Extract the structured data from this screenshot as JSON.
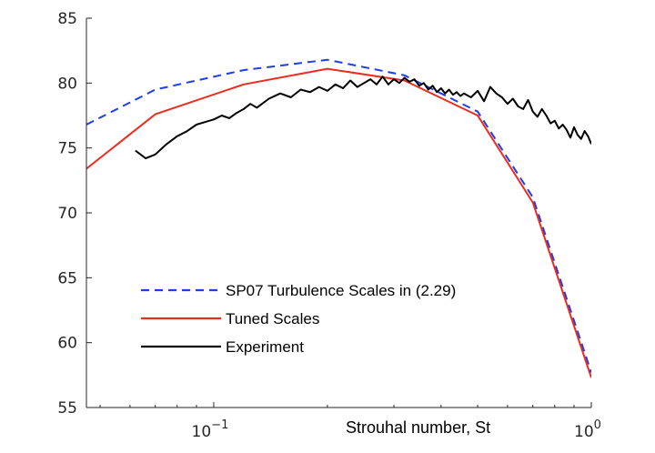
{
  "chart_data": {
    "type": "line",
    "title": "",
    "xlabel": "Strouhal number,  St",
    "ylabel": "",
    "xscale": "log",
    "xlim": [
      0.046,
      1.0
    ],
    "ylim": [
      55,
      85
    ],
    "y_ticks": [
      55,
      60,
      65,
      70,
      75,
      80,
      85
    ],
    "x_ticks": [
      {
        "value": 0.1,
        "base": "10",
        "exp": "−1"
      },
      {
        "value": 1.0,
        "base": "10",
        "exp": "0"
      }
    ],
    "grid": false,
    "legend_position": "bottom-left",
    "series": [
      {
        "name": "SP07 Turbulence Scales in (2.29)",
        "color": "#1f3de8",
        "dash": "dashed",
        "x": [
          0.046,
          0.07,
          0.12,
          0.2,
          0.32,
          0.5,
          0.7,
          1.0
        ],
        "y": [
          76.8,
          79.5,
          81.0,
          81.8,
          80.6,
          77.8,
          71.2,
          57.7
        ]
      },
      {
        "name": "Tuned Scales",
        "color": "#ee2a1e",
        "dash": "solid",
        "x": [
          0.046,
          0.07,
          0.12,
          0.2,
          0.32,
          0.5,
          0.7,
          1.0
        ],
        "y": [
          73.4,
          77.6,
          79.9,
          81.1,
          80.2,
          77.5,
          70.8,
          57.3
        ]
      },
      {
        "name": "Experiment",
        "color": "#000000",
        "dash": "solid",
        "x": [
          0.062,
          0.066,
          0.07,
          0.075,
          0.08,
          0.085,
          0.09,
          0.095,
          0.1,
          0.105,
          0.11,
          0.115,
          0.12,
          0.125,
          0.13,
          0.14,
          0.15,
          0.16,
          0.17,
          0.18,
          0.19,
          0.2,
          0.21,
          0.22,
          0.23,
          0.24,
          0.25,
          0.26,
          0.27,
          0.28,
          0.29,
          0.3,
          0.31,
          0.32,
          0.33,
          0.34,
          0.35,
          0.36,
          0.37,
          0.38,
          0.39,
          0.4,
          0.41,
          0.42,
          0.43,
          0.44,
          0.45,
          0.46,
          0.48,
          0.5,
          0.52,
          0.54,
          0.56,
          0.58,
          0.6,
          0.62,
          0.64,
          0.66,
          0.68,
          0.7,
          0.72,
          0.74,
          0.76,
          0.78,
          0.8,
          0.82,
          0.84,
          0.86,
          0.88,
          0.9,
          0.92,
          0.94,
          0.96,
          0.98,
          1.0
        ],
        "y": [
          74.8,
          74.2,
          74.5,
          75.3,
          75.9,
          76.3,
          76.8,
          77.0,
          77.2,
          77.5,
          77.3,
          77.7,
          78.0,
          78.4,
          78.1,
          78.8,
          79.2,
          78.9,
          79.5,
          79.3,
          79.7,
          79.4,
          79.9,
          79.6,
          80.2,
          79.7,
          80.0,
          80.3,
          79.9,
          80.5,
          79.9,
          80.3,
          80.0,
          80.4,
          80.1,
          80.3,
          79.8,
          80.0,
          79.5,
          79.8,
          79.3,
          79.6,
          79.2,
          79.5,
          79.1,
          79.3,
          79.0,
          79.2,
          78.9,
          79.4,
          78.6,
          79.7,
          79.2,
          78.9,
          78.4,
          78.8,
          78.2,
          78.0,
          78.7,
          77.8,
          77.4,
          78.0,
          77.5,
          76.9,
          77.1,
          76.5,
          76.8,
          76.4,
          75.8,
          76.6,
          76.0,
          75.7,
          76.3,
          75.9,
          75.3
        ]
      }
    ]
  }
}
